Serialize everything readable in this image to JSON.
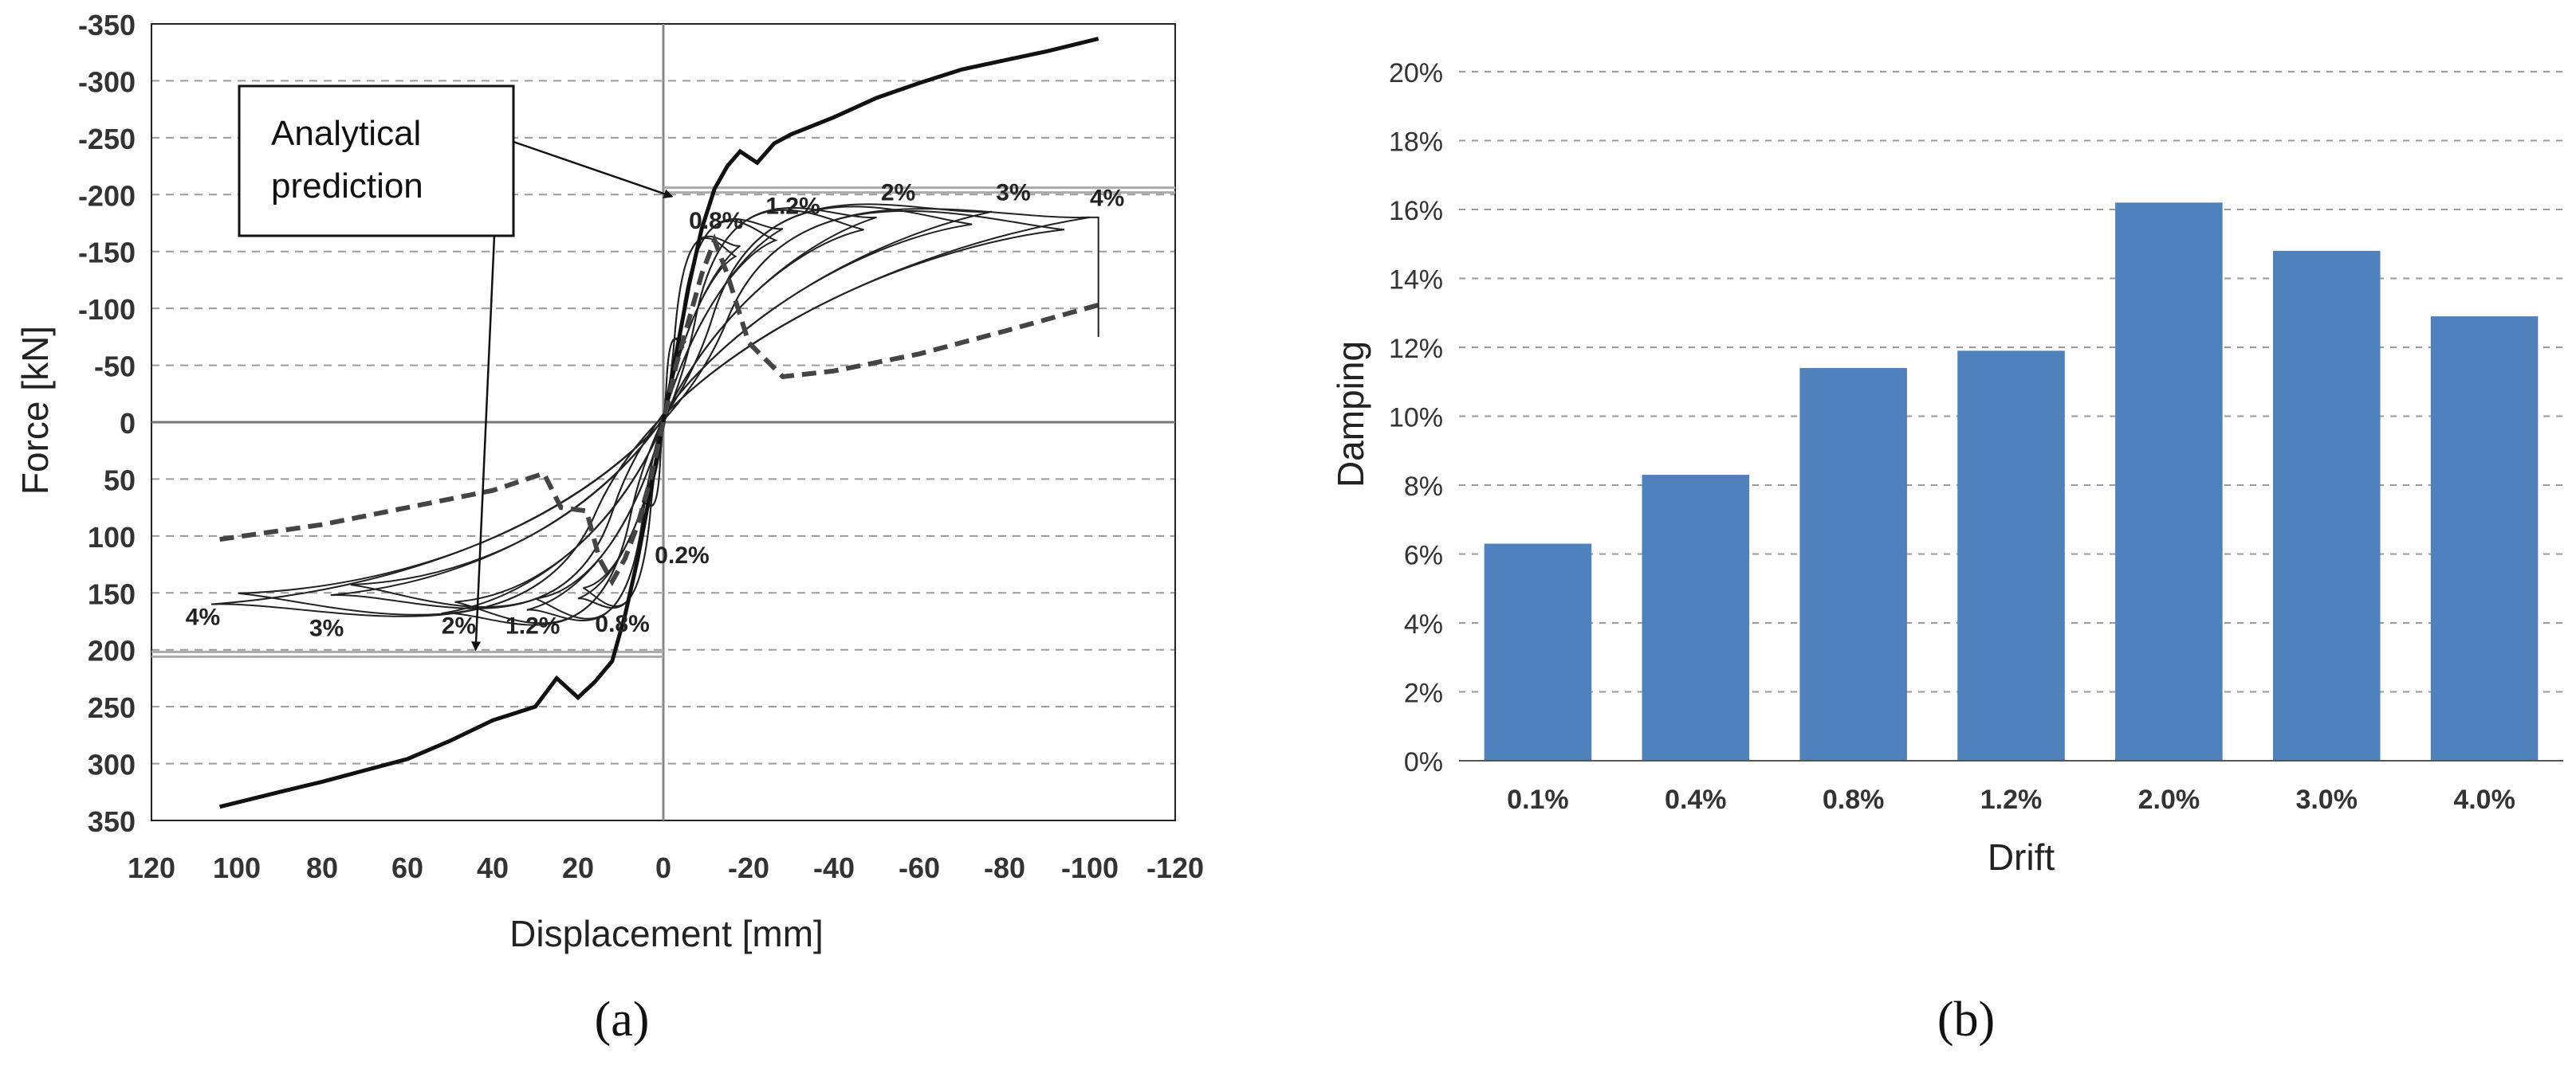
{
  "figure": {
    "panels": [
      "(a)",
      "(b)"
    ]
  },
  "chart_data": [
    {
      "type": "line",
      "ylabel": "Force [kN]",
      "xlabel": "Displacement [mm]",
      "x_ticks": [
        120,
        100,
        80,
        60,
        40,
        20,
        0,
        -20,
        -40,
        -60,
        -80,
        -100,
        -120
      ],
      "y_ticks": [
        -350,
        -300,
        -250,
        -200,
        -150,
        -100,
        -50,
        0,
        50,
        100,
        150,
        200,
        250,
        300,
        350
      ],
      "xlim": [
        120,
        -120
      ],
      "ylim": [
        -350,
        350
      ],
      "grid": "horizontal dashed",
      "prediction_level": 204,
      "annotation": {
        "text_lines": [
          "Analytical",
          "prediction"
        ]
      },
      "drift_labels_top": [
        {
          "text": "0.8%",
          "x": -6,
          "y": -170
        },
        {
          "text": "1.2%",
          "x": -24,
          "y": -183
        },
        {
          "text": "2%",
          "x": -51,
          "y": -195
        },
        {
          "text": "3%",
          "x": -78,
          "y": -195
        },
        {
          "text": "4%",
          "x": -100,
          "y": -190
        }
      ],
      "drift_labels_bottom": [
        {
          "text": "4%",
          "x": 112,
          "y": 178
        },
        {
          "text": "3%",
          "x": 83,
          "y": 188
        },
        {
          "text": "2%",
          "x": 52,
          "y": 186
        },
        {
          "text": "1.2%",
          "x": 37,
          "y": 186
        },
        {
          "text": "0.8%",
          "x": 16,
          "y": 184
        },
        {
          "text": "0.2%",
          "x": 2,
          "y": 124
        }
      ],
      "backbone_positive": {
        "x": [
          0,
          -3,
          -6,
          -9,
          -12,
          -15,
          -18,
          -22,
          -26,
          -30,
          -40,
          -50,
          -60,
          -70,
          -80,
          -90,
          -102
        ],
        "y": [
          0,
          -60,
          -120,
          -170,
          -205,
          -225,
          -238,
          -228,
          -245,
          -253,
          -268,
          -285,
          -298,
          -310,
          -318,
          -326,
          -337
        ]
      },
      "backbone_negative": {
        "x": [
          0,
          3,
          6,
          9,
          12,
          16,
          20,
          25,
          30,
          40,
          50,
          60,
          70,
          80,
          90,
          104
        ],
        "y": [
          0,
          60,
          120,
          170,
          210,
          228,
          242,
          225,
          250,
          262,
          280,
          296,
          306,
          316,
          325,
          338
        ]
      },
      "analytical_curve": {
        "x": [
          104,
          80,
          60,
          40,
          28,
          24,
          18,
          15,
          12,
          9,
          6,
          3,
          0,
          -3,
          -6,
          -9,
          -12,
          -15,
          -20,
          -28,
          -40,
          -60,
          -80,
          -102
        ],
        "y": [
          103,
          90,
          75,
          60,
          45,
          75,
          78,
          120,
          140,
          120,
          90,
          50,
          0,
          -50,
          -90,
          -130,
          -160,
          -130,
          -70,
          -40,
          -45,
          -60,
          -80,
          -103
        ]
      },
      "hysteresis_loops": [
        {
          "drift": "0.2%",
          "peak_x": -5,
          "peak_y": -70,
          "min_x": 5,
          "min_y": 70
        },
        {
          "drift": "0.8%",
          "peak_x": -18,
          "peak_y": -155,
          "min_x": 20,
          "min_y": 155
        },
        {
          "drift": "1.2%",
          "peak_x": -28,
          "peak_y": -170,
          "min_x": 32,
          "min_y": 165
        },
        {
          "drift": "2%",
          "peak_x": -50,
          "peak_y": -180,
          "min_x": 52,
          "min_y": 168
        },
        {
          "drift": "3%",
          "peak_x": -77,
          "peak_y": -185,
          "min_x": 78,
          "min_y": 152
        },
        {
          "drift": "4%",
          "peak_x": -100,
          "peak_y": -180,
          "min_x": 106,
          "min_y": 160
        }
      ]
    },
    {
      "type": "bar",
      "xlabel": "Drift",
      "ylabel": "Damping",
      "categories": [
        "0.1%",
        "0.4%",
        "0.8%",
        "1.2%",
        "2.0%",
        "3.0%",
        "4.0%"
      ],
      "values": [
        6.3,
        8.3,
        11.4,
        11.9,
        16.2,
        14.8,
        12.9
      ],
      "y_ticks": [
        "0%",
        "2%",
        "4%",
        "6%",
        "8%",
        "10%",
        "12%",
        "14%",
        "16%",
        "18%",
        "20%"
      ],
      "ylim": [
        0,
        20
      ],
      "grid": "horizontal dashed",
      "bar_color": "#4f81bd"
    }
  ]
}
